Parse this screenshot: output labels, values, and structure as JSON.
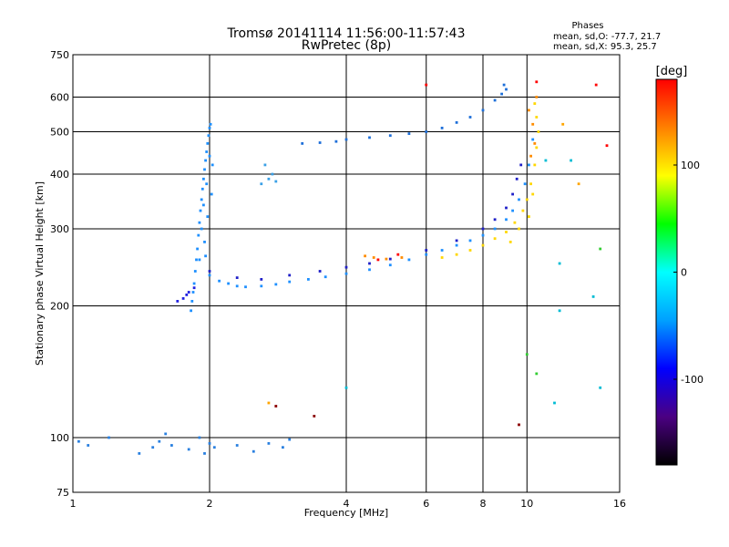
{
  "chart_data": {
    "type": "scatter",
    "title": "Tromsø 20141114 11:56:00-11:57:43",
    "subtitle": "RwPretec (8p)",
    "xlabel": "Frequency [MHz]",
    "ylabel": "Stationary phase Virtual Height [km]",
    "x_scale": "log",
    "y_scale": "log",
    "xlim": [
      1,
      16
    ],
    "ylim": [
      75,
      750
    ],
    "x_ticks": [
      1,
      2,
      4,
      6,
      8,
      10,
      16
    ],
    "y_ticks": [
      75,
      100,
      200,
      300,
      400,
      500,
      600,
      750
    ],
    "grid": true,
    "stats": {
      "heading": "Phases",
      "o_line": "mean, sd,O: -77.7, 21.7",
      "x_line": "mean, sd,X: 95.3, 25.7"
    },
    "colorbar": {
      "label": "[deg]",
      "range": [
        -180,
        180
      ],
      "ticks": [
        -100,
        0,
        100
      ],
      "colors": [
        "#000000",
        "#4b0082",
        "#0000ff",
        "#00a0ff",
        "#00ffff",
        "#00ff00",
        "#ffff00",
        "#ff8000",
        "#ff0000"
      ]
    },
    "series": [
      {
        "color": "#1e90ff",
        "points": [
          [
            1.82,
            195
          ],
          [
            1.83,
            205
          ],
          [
            1.84,
            215
          ],
          [
            1.85,
            225
          ],
          [
            1.86,
            240
          ],
          [
            1.87,
            255
          ],
          [
            1.88,
            270
          ],
          [
            1.89,
            290
          ],
          [
            1.9,
            310
          ],
          [
            1.91,
            330
          ],
          [
            1.92,
            350
          ],
          [
            1.93,
            370
          ],
          [
            1.94,
            390
          ],
          [
            1.95,
            410
          ],
          [
            1.96,
            430
          ],
          [
            1.97,
            450
          ],
          [
            1.98,
            470
          ],
          [
            1.99,
            490
          ],
          [
            2.0,
            510
          ],
          [
            2.01,
            520
          ],
          [
            1.92,
            300
          ],
          [
            1.95,
            280
          ],
          [
            1.98,
            320
          ],
          [
            2.02,
            360
          ],
          [
            1.96,
            260
          ],
          [
            2.03,
            420
          ],
          [
            1.94,
            340
          ],
          [
            1.97,
            380
          ],
          [
            1.9,
            255
          ],
          [
            2.0,
            440
          ]
        ]
      },
      {
        "color": "#2020e0",
        "points": [
          [
            1.7,
            205
          ],
          [
            1.75,
            208
          ],
          [
            1.78,
            212
          ],
          [
            1.8,
            215
          ],
          [
            1.85,
            220
          ]
        ]
      },
      {
        "color": "#1e90ff",
        "points": [
          [
            2.0,
            235
          ],
          [
            2.1,
            228
          ],
          [
            2.2,
            225
          ],
          [
            2.3,
            222
          ],
          [
            2.4,
            221
          ],
          [
            2.6,
            222
          ],
          [
            2.8,
            224
          ],
          [
            3.0,
            227
          ],
          [
            3.3,
            230
          ],
          [
            3.6,
            233
          ],
          [
            4.0,
            237
          ],
          [
            4.5,
            242
          ],
          [
            5.0,
            248
          ],
          [
            5.5,
            255
          ],
          [
            6.0,
            262
          ],
          [
            6.5,
            268
          ],
          [
            7.0,
            275
          ],
          [
            7.5,
            282
          ],
          [
            8.0,
            290
          ],
          [
            8.5,
            300
          ],
          [
            9.0,
            315
          ],
          [
            9.3,
            330
          ],
          [
            9.6,
            350
          ],
          [
            9.9,
            380
          ],
          [
            10.1,
            420
          ],
          [
            10.3,
            480
          ]
        ]
      },
      {
        "color": "#2020c8",
        "points": [
          [
            2.0,
            240
          ],
          [
            2.3,
            232
          ],
          [
            2.6,
            230
          ],
          [
            3.0,
            235
          ],
          [
            3.5,
            240
          ],
          [
            4.0,
            245
          ],
          [
            4.5,
            250
          ],
          [
            5.0,
            256
          ],
          [
            6.0,
            268
          ],
          [
            7.0,
            282
          ],
          [
            8.0,
            300
          ],
          [
            8.5,
            315
          ],
          [
            9.0,
            335
          ],
          [
            9.3,
            360
          ],
          [
            9.5,
            390
          ],
          [
            9.7,
            420
          ]
        ]
      },
      {
        "color": "#ffd700",
        "points": [
          [
            6.5,
            258
          ],
          [
            7.0,
            262
          ],
          [
            7.5,
            268
          ],
          [
            8.0,
            275
          ],
          [
            8.5,
            285
          ],
          [
            9.0,
            295
          ],
          [
            9.4,
            310
          ],
          [
            9.8,
            330
          ],
          [
            10.0,
            350
          ],
          [
            10.2,
            380
          ],
          [
            10.4,
            420
          ],
          [
            10.5,
            460
          ],
          [
            10.6,
            500
          ],
          [
            10.5,
            540
          ],
          [
            10.4,
            580
          ],
          [
            9.6,
            300
          ],
          [
            10.1,
            320
          ],
          [
            9.2,
            280
          ],
          [
            10.3,
            360
          ]
        ]
      },
      {
        "color": "#ff8c00",
        "points": [
          [
            10.3,
            520
          ],
          [
            10.4,
            470
          ],
          [
            10.2,
            440
          ],
          [
            10.5,
            600
          ],
          [
            10.1,
            560
          ],
          [
            4.6,
            258
          ],
          [
            4.9,
            256
          ],
          [
            5.3,
            258
          ],
          [
            4.4,
            260
          ]
        ]
      },
      {
        "color": "#ff0000",
        "points": [
          [
            5.2,
            262
          ],
          [
            4.7,
            255
          ],
          [
            10.5,
            650
          ],
          [
            14.2,
            640
          ],
          [
            6.0,
            640
          ],
          [
            15.0,
            465
          ]
        ]
      },
      {
        "color": "#1e6fd9",
        "points": [
          [
            3.2,
            470
          ],
          [
            3.5,
            472
          ],
          [
            3.8,
            475
          ],
          [
            4.0,
            480
          ],
          [
            4.5,
            485
          ],
          [
            5.0,
            490
          ],
          [
            5.5,
            495
          ],
          [
            6.0,
            500
          ],
          [
            6.5,
            510
          ],
          [
            7.0,
            525
          ],
          [
            7.5,
            540
          ],
          [
            8.0,
            560
          ],
          [
            8.5,
            590
          ],
          [
            8.8,
            610
          ],
          [
            9.0,
            625
          ],
          [
            8.9,
            640
          ]
        ]
      },
      {
        "color": "#3aa0e6",
        "points": [
          [
            2.6,
            380
          ],
          [
            2.7,
            390
          ],
          [
            2.75,
            400
          ],
          [
            2.65,
            420
          ],
          [
            2.8,
            385
          ]
        ]
      },
      {
        "color": "#2a80e0",
        "points": [
          [
            1.03,
            98
          ],
          [
            1.08,
            96
          ],
          [
            1.2,
            100
          ],
          [
            1.4,
            92
          ],
          [
            1.5,
            95
          ],
          [
            1.6,
            102
          ],
          [
            1.65,
            96
          ],
          [
            1.55,
            98
          ],
          [
            1.8,
            94
          ],
          [
            1.9,
            100
          ],
          [
            1.95,
            92
          ],
          [
            2.0,
            97
          ],
          [
            2.05,
            95
          ],
          [
            2.3,
            96
          ],
          [
            2.5,
            93
          ],
          [
            2.7,
            97
          ],
          [
            2.9,
            95
          ],
          [
            3.0,
            99
          ]
        ]
      },
      {
        "color": "#00bcd4",
        "points": [
          [
            4.0,
            130
          ],
          [
            11.8,
            195
          ],
          [
            11.8,
            250
          ],
          [
            14.0,
            210
          ],
          [
            14.5,
            130
          ],
          [
            11.5,
            120
          ],
          [
            12.5,
            430
          ],
          [
            11.0,
            430
          ]
        ]
      },
      {
        "color": "#32cd32",
        "points": [
          [
            10.0,
            155
          ],
          [
            14.5,
            270
          ],
          [
            10.5,
            140
          ]
        ]
      },
      {
        "color": "#8b0000",
        "points": [
          [
            9.6,
            107
          ],
          [
            3.4,
            112
          ],
          [
            2.8,
            118
          ]
        ]
      },
      {
        "color": "#ffa500",
        "points": [
          [
            2.7,
            120
          ],
          [
            12.0,
            520
          ],
          [
            13.0,
            380
          ]
        ]
      }
    ]
  }
}
